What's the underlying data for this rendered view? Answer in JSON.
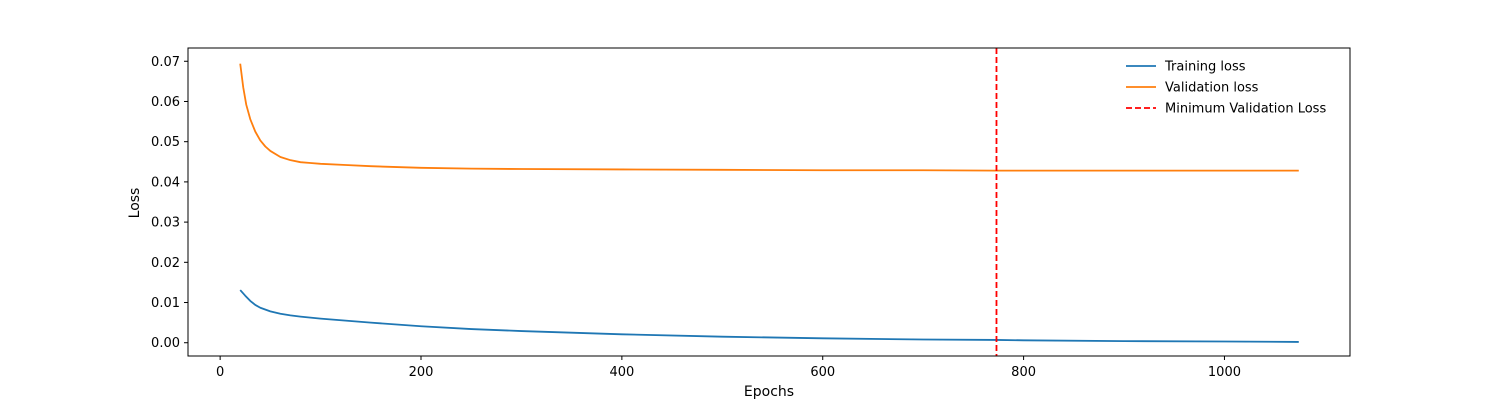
{
  "chart_data": {
    "type": "line",
    "title": "",
    "xlabel": "Epochs",
    "ylabel": "Loss",
    "xlim": [
      -32,
      1125
    ],
    "ylim": [
      -0.0033,
      0.0733
    ],
    "x_ticks": [
      0,
      200,
      400,
      600,
      800,
      1000
    ],
    "y_ticks": [
      0.0,
      0.01,
      0.02,
      0.03,
      0.04,
      0.05,
      0.06,
      0.07
    ],
    "x_tick_labels": [
      "0",
      "200",
      "400",
      "600",
      "800",
      "1000"
    ],
    "y_tick_labels": [
      "0.00",
      "0.01",
      "0.02",
      "0.03",
      "0.04",
      "0.05",
      "0.06",
      "0.07"
    ],
    "grid": false,
    "legend_position": "top-right",
    "series": [
      {
        "name": "Training loss",
        "color": "#1f77b4",
        "style": "solid",
        "x": [
          20,
          25,
          30,
          35,
          40,
          50,
          60,
          70,
          80,
          100,
          125,
          150,
          200,
          250,
          300,
          400,
          500,
          600,
          700,
          773,
          800,
          900,
          1000,
          1074
        ],
        "y": [
          0.0131,
          0.0117,
          0.0104,
          0.0094,
          0.0087,
          0.0078,
          0.0072,
          0.0068,
          0.0065,
          0.006,
          0.0055,
          0.005,
          0.0041,
          0.0034,
          0.0029,
          0.0021,
          0.0015,
          0.0011,
          0.0008,
          0.0007,
          0.0006,
          0.0004,
          0.0003,
          0.0002
        ]
      },
      {
        "name": "Validation loss",
        "color": "#ff7f0e",
        "style": "solid",
        "x": [
          20,
          23,
          26,
          30,
          35,
          40,
          45,
          50,
          60,
          70,
          80,
          90,
          100,
          125,
          150,
          200,
          250,
          300,
          400,
          500,
          600,
          700,
          773,
          800,
          900,
          1000,
          1074
        ],
        "y": [
          0.0694,
          0.0635,
          0.0592,
          0.0556,
          0.0525,
          0.0503,
          0.0488,
          0.0477,
          0.0462,
          0.0454,
          0.0449,
          0.0447,
          0.0445,
          0.0442,
          0.0439,
          0.0435,
          0.0433,
          0.0432,
          0.0431,
          0.043,
          0.0429,
          0.0429,
          0.0428,
          0.0428,
          0.0428,
          0.0428,
          0.0428
        ]
      },
      {
        "name": "Minimum Validation Loss",
        "color": "#ff0000",
        "style": "dashed",
        "vline_x": 773
      }
    ]
  }
}
